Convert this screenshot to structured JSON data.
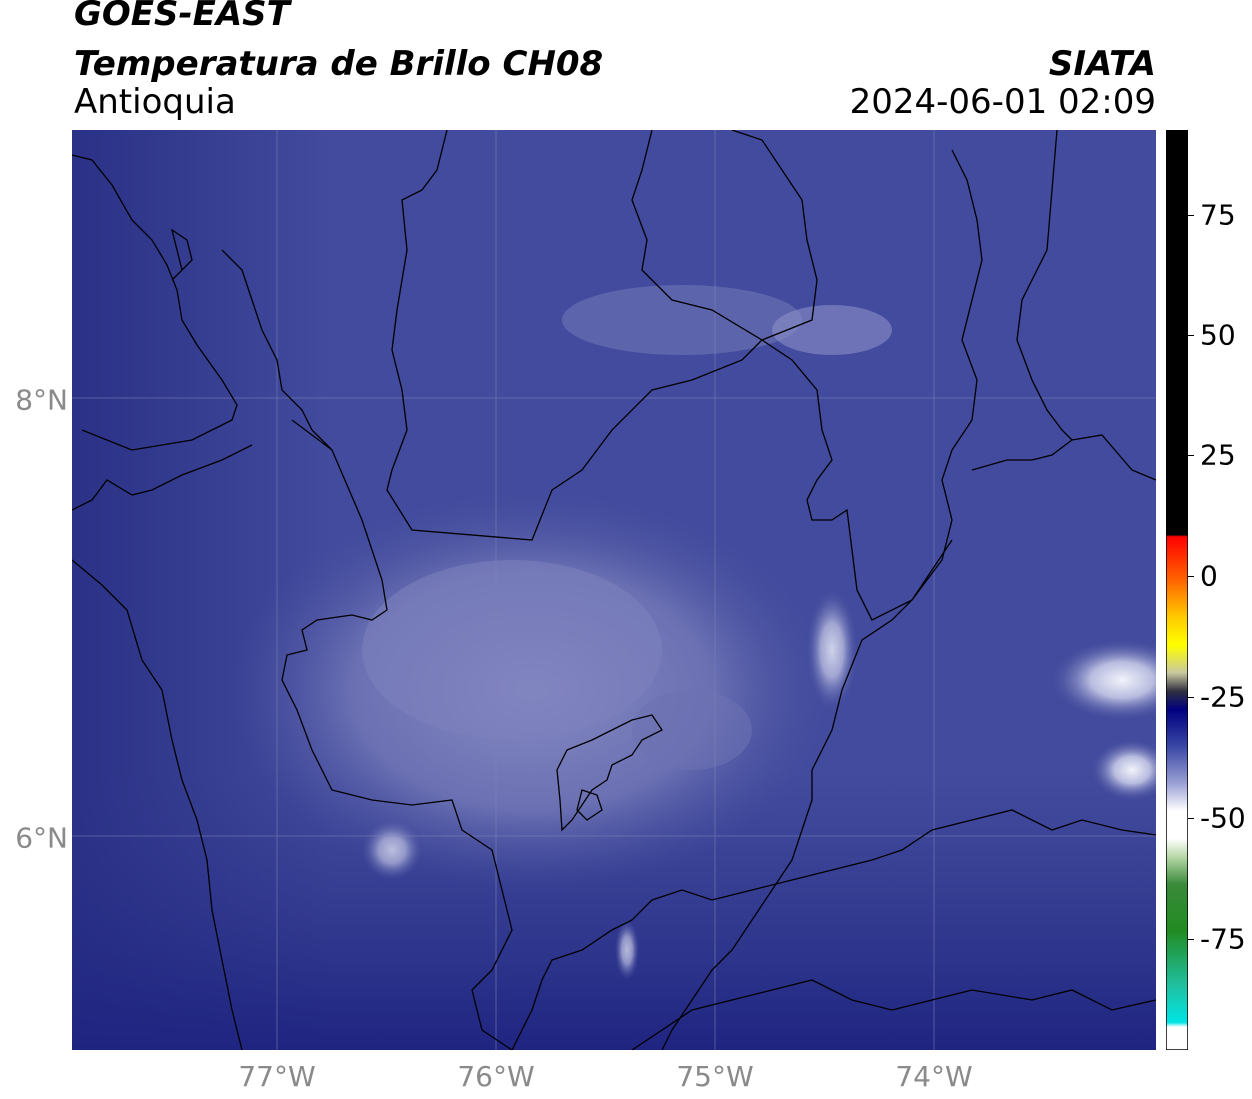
{
  "header": {
    "satellite": "GOES-EAST",
    "product": "Temperatura de Brillo CH08",
    "region": "Antioquia",
    "agency": "SIATA",
    "timestamp": "2024-06-01 02:09"
  },
  "map": {
    "lon_labels": [
      "77°W",
      "76°W",
      "75°W",
      "74°W"
    ],
    "lat_labels": [
      "8°N",
      "6°N"
    ],
    "gridlines": true,
    "colors": {
      "background_deep": "#2b3287",
      "background_mid": "#3e479a",
      "cloud_light": "#7b80bb",
      "cloud_bright": "#e6e8f5",
      "borders": "#000000"
    }
  },
  "colorbar": {
    "ticks": [
      "75",
      "50",
      "25",
      "0",
      "-25",
      "-50",
      "-75"
    ],
    "colors": {
      "black": "#000000",
      "red": "#ff0000",
      "orange": "#ff9900",
      "yellow": "#ffff00",
      "navy": "#000080",
      "white": "#ffffff",
      "green": "#228b22",
      "cyan": "#00e5e5"
    }
  }
}
